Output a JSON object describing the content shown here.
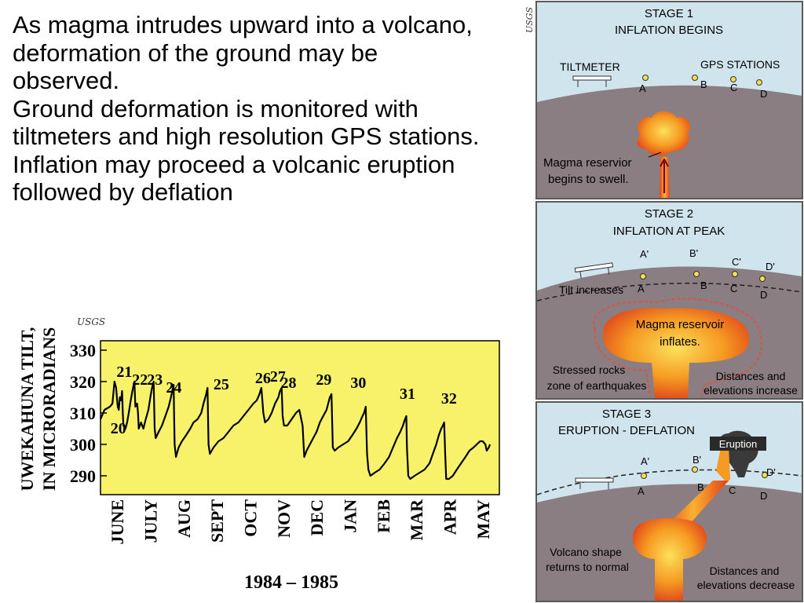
{
  "bullets": [
    "As magma intrudes upward into a volcano, deformation of the ground may be observed.",
    "Ground deformation is monitored with tiltmeters and high resolution GPS stations.",
    "Inflation may proceed a volcanic eruption followed by deflation"
  ],
  "credits": {
    "chart": "USGS",
    "diagram": "USGS"
  },
  "chart_data": {
    "type": "line",
    "title": "",
    "ylabel_line1": "UWEKAHUNA TILT,",
    "ylabel_line2": "IN MICRORADIANS",
    "xlabel": "1984 – 1985",
    "y_ticks": [
      330,
      320,
      310,
      300,
      290
    ],
    "ylim": [
      284,
      333
    ],
    "xlim": [
      0,
      12
    ],
    "months": [
      "JUNE",
      "JULY",
      "AUG",
      "SEPT",
      "OCT",
      "NOV",
      "DEC",
      "JAN",
      "FEB",
      "MAR",
      "APR",
      "MAY"
    ],
    "grid": false,
    "background": "#f7f26a",
    "line_color": "#000000",
    "series": [
      {
        "values": [
          [
            0.0,
            308
          ],
          [
            0.12,
            311
          ],
          [
            0.28,
            312
          ],
          [
            0.36,
            313
          ],
          [
            0.42,
            320
          ],
          [
            0.47,
            318
          ],
          [
            0.5,
            314
          ],
          [
            0.52,
            312
          ],
          [
            0.55,
            311
          ],
          [
            0.58,
            315
          ],
          [
            0.62,
            314
          ],
          [
            0.65,
            317
          ],
          [
            0.67,
            310
          ],
          [
            0.69,
            306
          ],
          [
            0.75,
            305
          ],
          [
            0.8,
            307
          ],
          [
            0.85,
            310
          ],
          [
            0.91,
            314
          ],
          [
            0.96,
            317
          ],
          [
            1.02,
            320
          ],
          [
            1.05,
            312
          ],
          [
            1.1,
            313
          ],
          [
            1.13,
            310
          ],
          [
            1.15,
            305
          ],
          [
            1.22,
            307
          ],
          [
            1.29,
            305
          ],
          [
            1.36,
            308
          ],
          [
            1.44,
            311
          ],
          [
            1.5,
            315
          ],
          [
            1.55,
            318
          ],
          [
            1.6,
            320
          ],
          [
            1.63,
            305
          ],
          [
            1.66,
            302
          ],
          [
            1.75,
            304
          ],
          [
            1.85,
            306
          ],
          [
            1.95,
            309
          ],
          [
            2.05,
            312
          ],
          [
            2.12,
            315
          ],
          [
            2.16,
            317
          ],
          [
            2.2,
            319
          ],
          [
            2.23,
            300
          ],
          [
            2.27,
            296
          ],
          [
            2.35,
            299
          ],
          [
            2.45,
            301
          ],
          [
            2.58,
            303
          ],
          [
            2.7,
            305
          ],
          [
            2.8,
            307
          ],
          [
            2.92,
            308
          ],
          [
            3.03,
            310
          ],
          [
            3.1,
            313
          ],
          [
            3.18,
            316
          ],
          [
            3.22,
            318
          ],
          [
            3.25,
            300
          ],
          [
            3.29,
            297
          ],
          [
            3.4,
            299
          ],
          [
            3.55,
            301
          ],
          [
            3.7,
            302
          ],
          [
            3.85,
            304
          ],
          [
            4.0,
            306
          ],
          [
            4.15,
            307
          ],
          [
            4.3,
            309
          ],
          [
            4.45,
            311
          ],
          [
            4.6,
            313
          ],
          [
            4.7,
            314
          ],
          [
            4.78,
            316
          ],
          [
            4.84,
            318
          ],
          [
            4.9,
            310
          ],
          [
            4.95,
            307
          ],
          [
            5.05,
            308
          ],
          [
            5.15,
            310
          ],
          [
            5.25,
            313
          ],
          [
            5.35,
            315
          ],
          [
            5.4,
            317
          ],
          [
            5.45,
            318
          ],
          [
            5.48,
            309
          ],
          [
            5.52,
            306
          ],
          [
            5.62,
            306
          ],
          [
            5.75,
            308
          ],
          [
            5.88,
            310
          ],
          [
            5.98,
            311
          ],
          [
            6.08,
            306
          ],
          [
            6.13,
            296
          ],
          [
            6.2,
            298
          ],
          [
            6.3,
            300
          ],
          [
            6.4,
            302
          ],
          [
            6.5,
            304
          ],
          [
            6.6,
            307
          ],
          [
            6.7,
            309
          ],
          [
            6.8,
            311
          ],
          [
            6.85,
            313
          ],
          [
            6.9,
            315
          ],
          [
            6.95,
            316
          ],
          [
            6.99,
            299
          ],
          [
            7.05,
            298
          ],
          [
            7.15,
            299
          ],
          [
            7.3,
            300
          ],
          [
            7.45,
            301
          ],
          [
            7.58,
            303
          ],
          [
            7.7,
            305
          ],
          [
            7.8,
            307
          ],
          [
            7.88,
            309
          ],
          [
            7.93,
            310
          ],
          [
            7.98,
            312
          ],
          [
            8.02,
            297
          ],
          [
            8.06,
            292
          ],
          [
            8.12,
            290
          ],
          [
            8.25,
            291
          ],
          [
            8.4,
            292
          ],
          [
            8.55,
            294
          ],
          [
            8.68,
            296
          ],
          [
            8.8,
            299
          ],
          [
            8.92,
            302
          ],
          [
            9.02,
            304
          ],
          [
            9.1,
            306
          ],
          [
            9.16,
            308
          ],
          [
            9.2,
            309
          ],
          [
            9.22,
            299
          ],
          [
            9.26,
            290
          ],
          [
            9.32,
            289
          ],
          [
            9.45,
            290
          ],
          [
            9.6,
            291
          ],
          [
            9.75,
            292
          ],
          [
            9.9,
            294
          ],
          [
            10.0,
            297
          ],
          [
            10.1,
            300
          ],
          [
            10.18,
            303
          ],
          [
            10.25,
            305
          ],
          [
            10.3,
            306
          ],
          [
            10.34,
            307
          ],
          [
            10.37,
            297
          ],
          [
            10.4,
            289
          ],
          [
            10.48,
            289
          ],
          [
            10.6,
            290
          ],
          [
            10.72,
            292
          ],
          [
            10.85,
            294
          ],
          [
            10.98,
            296
          ],
          [
            11.1,
            298
          ],
          [
            11.22,
            299
          ],
          [
            11.32,
            300
          ],
          [
            11.42,
            301
          ],
          [
            11.5,
            301
          ],
          [
            11.58,
            300
          ],
          [
            11.62,
            298
          ],
          [
            11.68,
            299
          ],
          [
            11.72,
            300
          ]
        ]
      }
    ],
    "annotations": [
      {
        "label": "20",
        "x": 0.3,
        "y": 303.5
      },
      {
        "label": "21",
        "x": 0.48,
        "y": 321.5
      },
      {
        "label": "22",
        "x": 0.95,
        "y": 319.0
      },
      {
        "label": "23",
        "x": 1.4,
        "y": 319.0
      },
      {
        "label": "24",
        "x": 1.97,
        "y": 316.5
      },
      {
        "label": "25",
        "x": 3.4,
        "y": 317.5
      },
      {
        "label": "26",
        "x": 4.65,
        "y": 319.5
      },
      {
        "label": "27",
        "x": 5.1,
        "y": 320.0
      },
      {
        "label": "28",
        "x": 5.42,
        "y": 318.0
      },
      {
        "label": "29",
        "x": 6.48,
        "y": 319.0
      },
      {
        "label": "30",
        "x": 7.52,
        "y": 318.0
      },
      {
        "label": "31",
        "x": 9.0,
        "y": 314.5
      },
      {
        "label": "32",
        "x": 10.25,
        "y": 313.0
      }
    ]
  },
  "diagram": {
    "stage1": {
      "title1": "STAGE 1",
      "title2": "INFLATION BEGINS",
      "tiltmeter": "TILTMETER",
      "gps": "GPS STATIONS",
      "points": [
        "A",
        "B",
        "C",
        "D"
      ],
      "reservoir1": "Magma reservior",
      "reservoir2": "begins to swell."
    },
    "stage2": {
      "title1": "STAGE 2",
      "title2": "INFLATION AT PEAK",
      "upper_points": [
        "A'",
        "B'",
        "C'",
        "D'"
      ],
      "lower_points": [
        "A",
        "B",
        "C",
        "D"
      ],
      "tilt": "Tilt increases",
      "reservoir1": "Magma reservoir",
      "reservoir2": "inflates.",
      "stressed1": "Stressed rocks",
      "stressed2": "zone of earthquakes",
      "distances1": "Distances and",
      "distances2": "elevations increase"
    },
    "stage3": {
      "title1": "STAGE 3",
      "title2": "ERUPTION - DEFLATION",
      "eruption": "Eruption",
      "upper_points": [
        "A'",
        "B'",
        "D'"
      ],
      "lower_points": [
        "A",
        "B",
        "C",
        "D"
      ],
      "shape1": "Volcano shape",
      "shape2": "returns to normal",
      "distances1": "Distances and",
      "distances2": "elevations decrease"
    },
    "colors": {
      "sky": "#cfe4ec",
      "ground": "#8a7e82",
      "panel_border": "#5a5a5a",
      "magma": "#f07a1e",
      "magma_core": "#fde05a",
      "magma_edge": "#d8331a"
    }
  }
}
